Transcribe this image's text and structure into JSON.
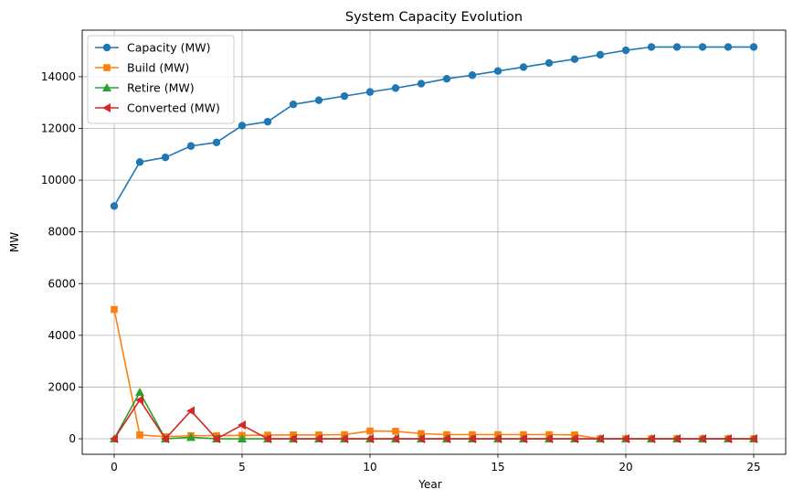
{
  "chart_data": {
    "type": "line",
    "title": "System Capacity Evolution",
    "xlabel": "Year",
    "ylabel": "MW",
    "xlim": [
      -1.25,
      26.25
    ],
    "ylim": [
      -600,
      15800
    ],
    "xticks": [
      0,
      5,
      10,
      15,
      20,
      25
    ],
    "yticks": [
      0,
      2000,
      4000,
      6000,
      8000,
      10000,
      12000,
      14000
    ],
    "grid": true,
    "legend_position": "top-left",
    "x": [
      0,
      1,
      2,
      3,
      4,
      5,
      6,
      7,
      8,
      9,
      10,
      11,
      12,
      13,
      14,
      15,
      16,
      17,
      18,
      19,
      20,
      21,
      22,
      23,
      24,
      25
    ],
    "series": [
      {
        "name": "Capacity (MW)",
        "color": "#1f77b4",
        "marker": "circle",
        "values": [
          9000,
          10700,
          10880,
          11320,
          11460,
          12110,
          12260,
          12930,
          13090,
          13250,
          13410,
          13560,
          13730,
          13920,
          14060,
          14220,
          14370,
          14530,
          14680,
          14850,
          15020,
          15150,
          15150,
          15150,
          15150,
          15150
        ]
      },
      {
        "name": "Build (MW)",
        "color": "#ff7f0e",
        "marker": "square",
        "values": [
          5000,
          150,
          80,
          120,
          120,
          130,
          140,
          150,
          150,
          160,
          300,
          290,
          200,
          160,
          160,
          160,
          160,
          160,
          150,
          0,
          0,
          0,
          0,
          0,
          0,
          0
        ]
      },
      {
        "name": "Retire (MW)",
        "color": "#2ca02c",
        "marker": "triangle-up",
        "values": [
          0,
          1800,
          0,
          60,
          0,
          0,
          0,
          0,
          0,
          0,
          0,
          0,
          0,
          0,
          0,
          0,
          0,
          0,
          0,
          0,
          0,
          0,
          0,
          0,
          0,
          0
        ]
      },
      {
        "name": "Converted (MW)",
        "color": "#d62728",
        "marker": "triangle-left",
        "values": [
          0,
          1500,
          0,
          1080,
          0,
          530,
          0,
          0,
          0,
          0,
          0,
          0,
          0,
          0,
          0,
          0,
          0,
          0,
          0,
          0,
          0,
          0,
          0,
          0,
          0,
          0
        ]
      }
    ]
  }
}
